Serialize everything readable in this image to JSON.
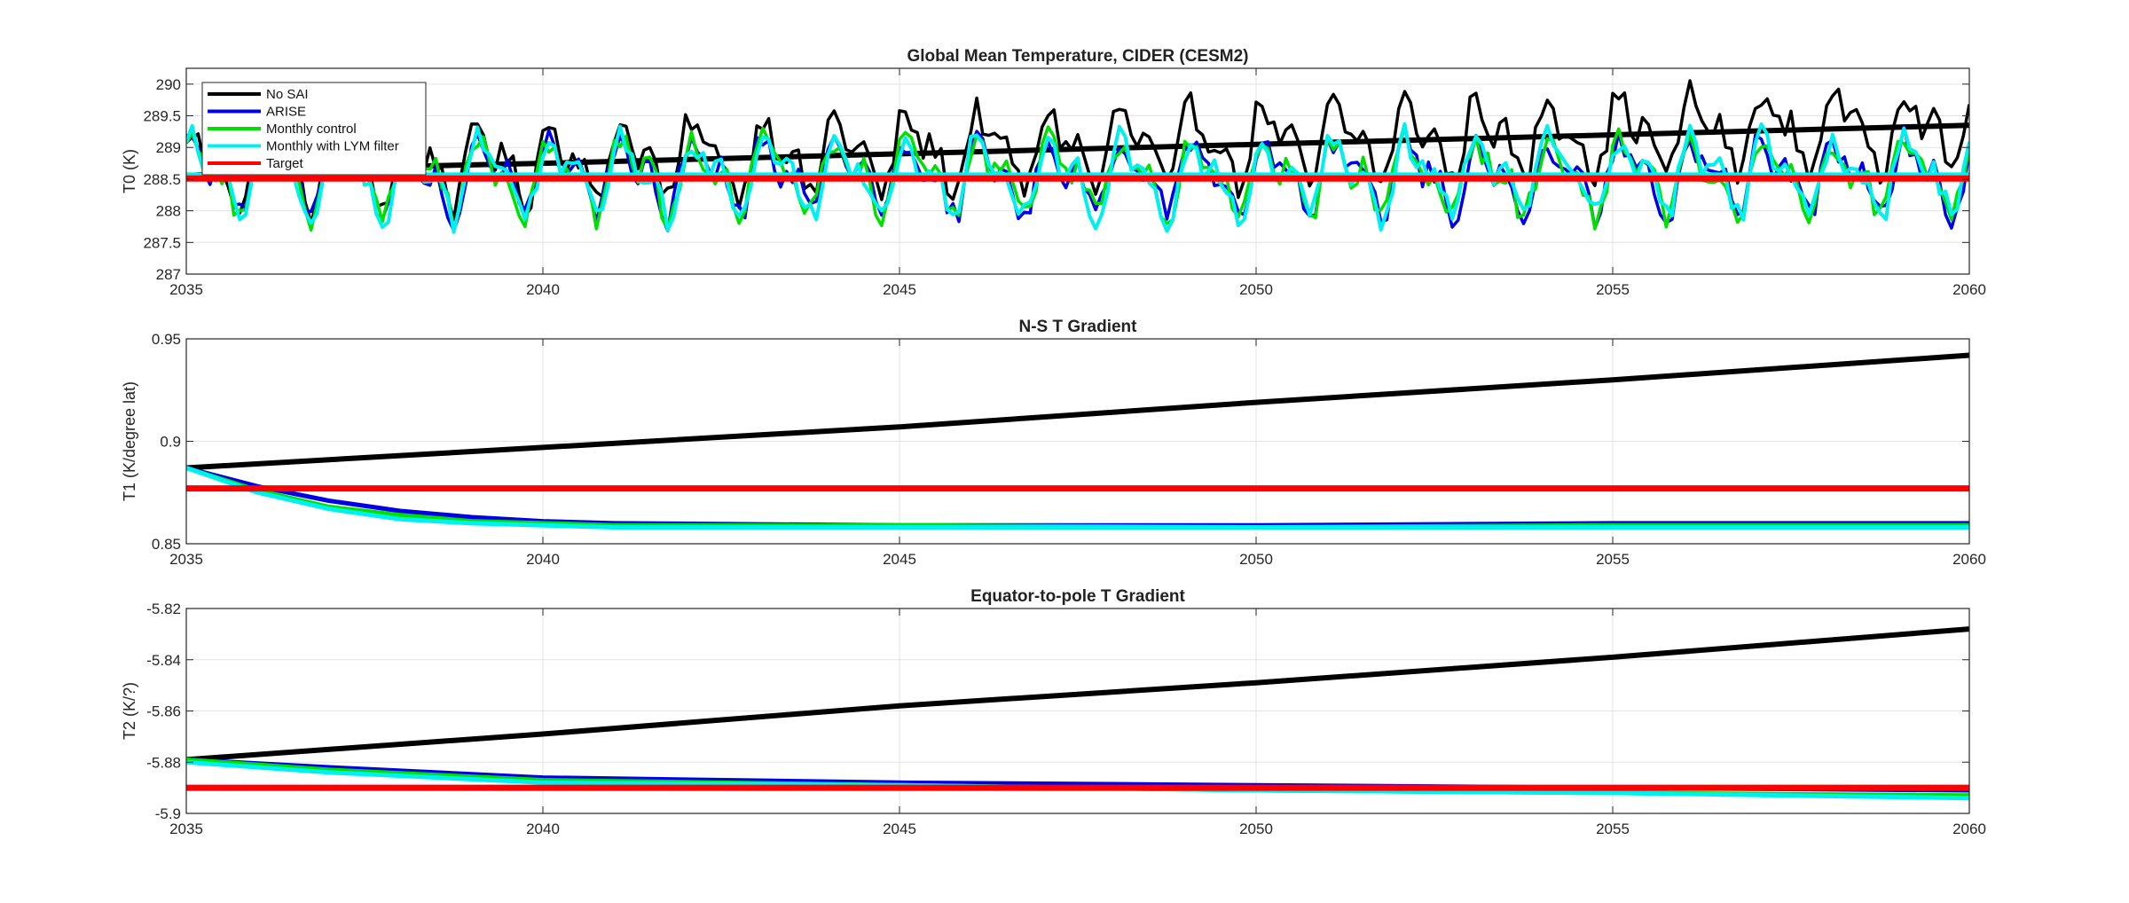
{
  "chart_data": [
    {
      "type": "line",
      "title": "Global Mean Temperature, CIDER (CESM2)",
      "ylabel": "T0 (K)",
      "xlabel": "",
      "xlim": [
        2035,
        2060
      ],
      "ylim": [
        287,
        290.25
      ],
      "x_ticks": [
        "2035",
        "2040",
        "2045",
        "2050",
        "2055",
        "2060"
      ],
      "y_ticks": [
        "287",
        "287.5",
        "288",
        "288.5",
        "289",
        "289.5",
        "290"
      ],
      "grid": true,
      "legend": {
        "placement": "top-left",
        "entries": [
          {
            "name": "No SAI",
            "color": "#000000"
          },
          {
            "name": "ARISE",
            "color": "#0000e6"
          },
          {
            "name": "Monthly control",
            "color": "#00e000"
          },
          {
            "name": "Monthly with LYM filter",
            "color": "#00f0f0"
          },
          {
            "name": "Target",
            "color": "#ff0000"
          }
        ]
      },
      "series": [
        {
          "name": "No SAI",
          "color": "#000000",
          "kind": "seasonal",
          "x": [
            2035,
            2060
          ],
          "trend": [
            288.65,
            289.35
          ],
          "amplitude": 0.85
        },
        {
          "name": "No SAI",
          "color": "#000000",
          "kind": "line",
          "x": [
            2035,
            2036,
            2040,
            2045,
            2050,
            2055,
            2060
          ],
          "values": [
            288.55,
            288.65,
            288.75,
            288.9,
            289.05,
            289.2,
            289.35
          ]
        },
        {
          "name": "ARISE",
          "color": "#0000e6",
          "kind": "seasonal",
          "x": [
            2035,
            2060
          ],
          "trend": [
            288.55,
            288.55
          ],
          "amplitude": 0.8
        },
        {
          "name": "Monthly control",
          "color": "#00e000",
          "kind": "seasonal",
          "x": [
            2035,
            2060
          ],
          "trend": [
            288.55,
            288.55
          ],
          "amplitude": 0.78
        },
        {
          "name": "Monthly with LYM filter",
          "color": "#00f0f0",
          "kind": "seasonal",
          "x": [
            2035,
            2060
          ],
          "trend": [
            288.55,
            288.55
          ],
          "amplitude": 0.82
        },
        {
          "name": "Monthly with LYM filter",
          "color": "#00f0f0",
          "kind": "line",
          "x": [
            2035,
            2060
          ],
          "values": [
            288.57,
            288.57
          ]
        },
        {
          "name": "Target",
          "color": "#ff0000",
          "kind": "line",
          "x": [
            2035,
            2060
          ],
          "values": [
            288.51,
            288.51
          ]
        }
      ]
    },
    {
      "type": "line",
      "title": "N-S T Gradient",
      "ylabel": "T1 (K/degree lat)",
      "xlabel": "",
      "xlim": [
        2035,
        2060
      ],
      "ylim": [
        0.85,
        0.95
      ],
      "x_ticks": [
        "2035",
        "2040",
        "2045",
        "2050",
        "2055",
        "2060"
      ],
      "y_ticks": [
        "0.85",
        "0.9",
        "0.95"
      ],
      "grid": true,
      "series": [
        {
          "name": "No SAI",
          "color": "#000000",
          "kind": "line",
          "x": [
            2035,
            2040,
            2045,
            2050,
            2055,
            2060
          ],
          "values": [
            0.887,
            0.897,
            0.907,
            0.919,
            0.93,
            0.942
          ]
        },
        {
          "name": "ARISE",
          "color": "#0000e6",
          "kind": "line",
          "x": [
            2035,
            2036,
            2037,
            2038,
            2039,
            2040,
            2041,
            2045,
            2050,
            2055,
            2060
          ],
          "values": [
            0.887,
            0.878,
            0.871,
            0.866,
            0.863,
            0.861,
            0.86,
            0.859,
            0.859,
            0.86,
            0.86
          ]
        },
        {
          "name": "Monthly control",
          "color": "#00e000",
          "kind": "line",
          "x": [
            2035,
            2036,
            2037,
            2038,
            2039,
            2040,
            2041,
            2045,
            2050,
            2055,
            2060
          ],
          "values": [
            0.887,
            0.876,
            0.868,
            0.864,
            0.861,
            0.86,
            0.859,
            0.859,
            0.858,
            0.859,
            0.859
          ]
        },
        {
          "name": "Monthly with LYM filter",
          "color": "#00f0f0",
          "kind": "line",
          "x": [
            2035,
            2036,
            2037,
            2038,
            2039,
            2040,
            2041,
            2045,
            2050,
            2055,
            2060
          ],
          "values": [
            0.887,
            0.875,
            0.867,
            0.862,
            0.86,
            0.859,
            0.858,
            0.858,
            0.858,
            0.858,
            0.858
          ]
        },
        {
          "name": "Target",
          "color": "#ff0000",
          "kind": "line",
          "x": [
            2035,
            2060
          ],
          "values": [
            0.877,
            0.877
          ]
        }
      ]
    },
    {
      "type": "line",
      "title": "Equator-to-pole T Gradient",
      "ylabel": "T2 (K/?)",
      "xlabel": "",
      "xlim": [
        2035,
        2060
      ],
      "ylim": [
        -5.9,
        -5.82
      ],
      "x_ticks": [
        "2035",
        "2040",
        "2045",
        "2050",
        "2055",
        "2060"
      ],
      "y_ticks": [
        "-5.9",
        "-5.88",
        "-5.86",
        "-5.84",
        "-5.82"
      ],
      "grid": true,
      "series": [
        {
          "name": "No SAI",
          "color": "#000000",
          "kind": "line",
          "x": [
            2035,
            2040,
            2045,
            2050,
            2055,
            2060
          ],
          "values": [
            -5.879,
            -5.869,
            -5.858,
            -5.849,
            -5.839,
            -5.828
          ]
        },
        {
          "name": "ARISE",
          "color": "#0000e6",
          "kind": "line",
          "x": [
            2035,
            2037,
            2040,
            2045,
            2050,
            2055,
            2060
          ],
          "values": [
            -5.879,
            -5.882,
            -5.886,
            -5.888,
            -5.889,
            -5.89,
            -5.891
          ]
        },
        {
          "name": "Monthly control",
          "color": "#00e000",
          "kind": "line",
          "x": [
            2035,
            2037,
            2040,
            2045,
            2050,
            2055,
            2060
          ],
          "values": [
            -5.879,
            -5.883,
            -5.887,
            -5.889,
            -5.891,
            -5.892,
            -5.893
          ]
        },
        {
          "name": "Monthly with LYM filter",
          "color": "#00f0f0",
          "kind": "line",
          "x": [
            2035,
            2037,
            2040,
            2045,
            2050,
            2055,
            2060
          ],
          "values": [
            -5.88,
            -5.884,
            -5.888,
            -5.889,
            -5.891,
            -5.892,
            -5.894
          ]
        },
        {
          "name": "Target",
          "color": "#ff0000",
          "kind": "line",
          "x": [
            2035,
            2060
          ],
          "values": [
            -5.89,
            -5.89
          ]
        }
      ]
    }
  ]
}
